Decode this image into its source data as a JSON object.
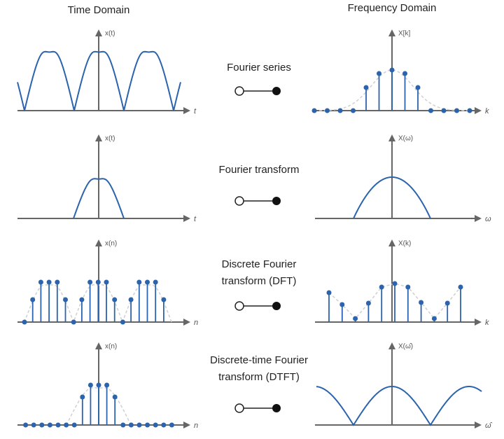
{
  "header": {
    "left": "Time Domain",
    "right": "Frequency Domain"
  },
  "rows": [
    {
      "label": [
        "Fourier series"
      ],
      "time": {
        "y_label": "x(t)",
        "x_label": "t"
      },
      "freq": {
        "y_label": "X[k]",
        "x_label": "k"
      }
    },
    {
      "label": [
        "Fourier transform"
      ],
      "time": {
        "y_label": "x(t)",
        "x_label": "t"
      },
      "freq": {
        "y_label": "X(ω)",
        "x_label": "ω"
      }
    },
    {
      "label": [
        "Discrete Fourier",
        "transform (DFT)"
      ],
      "time": {
        "y_label": "x(n)",
        "x_label": "n"
      },
      "freq": {
        "y_label": "X(k)",
        "x_label": "k"
      }
    },
    {
      "label": [
        "Discrete-time Fourier",
        "transform (DTFT)"
      ],
      "time": {
        "y_label": "x(n)",
        "x_label": "n"
      },
      "freq": {
        "y_label": "X(ω̂)",
        "x_label": "ω̂"
      }
    }
  ]
}
